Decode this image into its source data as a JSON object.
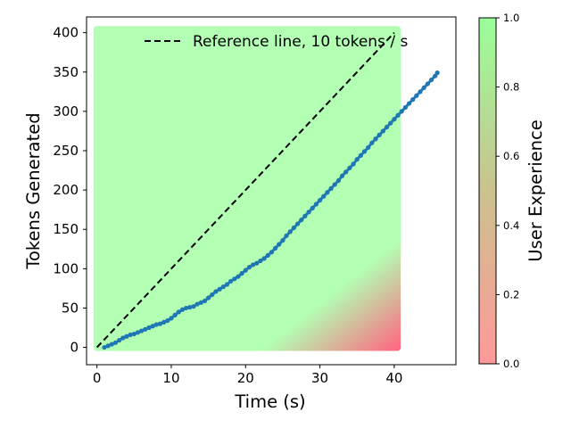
{
  "chart_data": {
    "type": "scatter",
    "xlabel": "Time (s)",
    "ylabel": "Tokens Generated",
    "xlim": [
      -1.4,
      48.3
    ],
    "ylim": [
      -22,
      420
    ],
    "xticks": [
      0,
      10,
      20,
      30,
      40
    ],
    "yticks": [
      0,
      50,
      100,
      150,
      200,
      250,
      300,
      350,
      400
    ],
    "grid": false,
    "legend": {
      "position": "top-right",
      "entries": [
        {
          "label": "Reference line, 10 tokens / s",
          "style": "dashed",
          "color": "#000000"
        }
      ]
    },
    "background_field": {
      "description": "user experience score",
      "x_range": [
        0,
        40.4
      ],
      "y_range": [
        0,
        404
      ],
      "colormap": [
        "#ff6680",
        "#b3ffb3"
      ]
    },
    "reference_line": {
      "x": [
        0,
        40
      ],
      "y": [
        0,
        400
      ],
      "color": "#000000"
    },
    "series": [
      {
        "color": "#1f77b4",
        "points": [
          [
            1.0,
            0
          ],
          [
            1.5,
            2
          ],
          [
            2.0,
            4
          ],
          [
            2.5,
            6
          ],
          [
            3.0,
            9
          ],
          [
            3.5,
            12
          ],
          [
            4.0,
            14
          ],
          [
            4.5,
            16
          ],
          [
            5.0,
            17
          ],
          [
            5.5,
            19
          ],
          [
            6.0,
            21
          ],
          [
            6.5,
            23
          ],
          [
            7.0,
            25
          ],
          [
            7.5,
            27
          ],
          [
            8.0,
            29
          ],
          [
            8.5,
            30
          ],
          [
            9.0,
            32
          ],
          [
            9.5,
            34
          ],
          [
            10.0,
            37
          ],
          [
            10.5,
            41
          ],
          [
            11.0,
            45
          ],
          [
            11.5,
            48
          ],
          [
            12.0,
            50
          ],
          [
            12.5,
            51
          ],
          [
            13.0,
            52
          ],
          [
            13.5,
            55
          ],
          [
            14.0,
            57
          ],
          [
            14.5,
            59
          ],
          [
            15.0,
            63
          ],
          [
            15.5,
            67
          ],
          [
            16.0,
            71
          ],
          [
            16.5,
            74
          ],
          [
            17.0,
            77
          ],
          [
            17.5,
            80
          ],
          [
            18.0,
            84
          ],
          [
            18.5,
            87
          ],
          [
            19.0,
            90
          ],
          [
            19.5,
            94
          ],
          [
            20.0,
            98
          ],
          [
            20.5,
            102
          ],
          [
            21.0,
            105
          ],
          [
            21.5,
            107
          ],
          [
            22.0,
            110
          ],
          [
            22.5,
            113
          ],
          [
            23.0,
            117
          ],
          [
            23.5,
            121
          ],
          [
            24.0,
            126
          ],
          [
            24.5,
            131
          ],
          [
            25.0,
            136
          ],
          [
            25.5,
            142
          ],
          [
            26.0,
            147
          ],
          [
            26.5,
            152
          ],
          [
            27.0,
            157
          ],
          [
            27.5,
            162
          ],
          [
            28.0,
            167
          ],
          [
            28.5,
            172
          ],
          [
            29.0,
            177
          ],
          [
            29.5,
            182
          ],
          [
            30.0,
            187
          ],
          [
            30.5,
            192
          ],
          [
            31.0,
            197
          ],
          [
            31.5,
            202
          ],
          [
            32.0,
            207
          ],
          [
            32.5,
            212
          ],
          [
            33.0,
            218
          ],
          [
            33.5,
            223
          ],
          [
            34.0,
            228
          ],
          [
            34.5,
            233
          ],
          [
            35.0,
            239
          ],
          [
            35.5,
            244
          ],
          [
            36.0,
            249
          ],
          [
            36.5,
            254
          ],
          [
            37.0,
            260
          ],
          [
            37.5,
            265
          ],
          [
            38.0,
            270
          ],
          [
            38.5,
            275
          ],
          [
            39.0,
            280
          ],
          [
            39.5,
            285
          ],
          [
            40.0,
            290
          ],
          [
            40.5,
            295
          ],
          [
            41.0,
            300
          ],
          [
            41.5,
            305
          ],
          [
            42.0,
            310
          ],
          [
            42.5,
            315
          ],
          [
            43.0,
            320
          ],
          [
            43.5,
            325
          ],
          [
            44.0,
            330
          ],
          [
            44.5,
            335
          ],
          [
            45.0,
            340
          ],
          [
            45.5,
            345
          ],
          [
            45.8,
            349
          ]
        ]
      }
    ],
    "colorbar": {
      "label": "User Experience",
      "range": [
        0.0,
        1.0
      ],
      "ticks": [
        0.0,
        0.2,
        0.4,
        0.6,
        0.8,
        1.0
      ],
      "tick_labels": [
        "0.0",
        "0.2",
        "0.4",
        "0.6",
        "0.8",
        "1.0"
      ],
      "colors": {
        "low": "#ff9999",
        "mid": "#cbc28f",
        "high": "#99ff99"
      }
    }
  }
}
